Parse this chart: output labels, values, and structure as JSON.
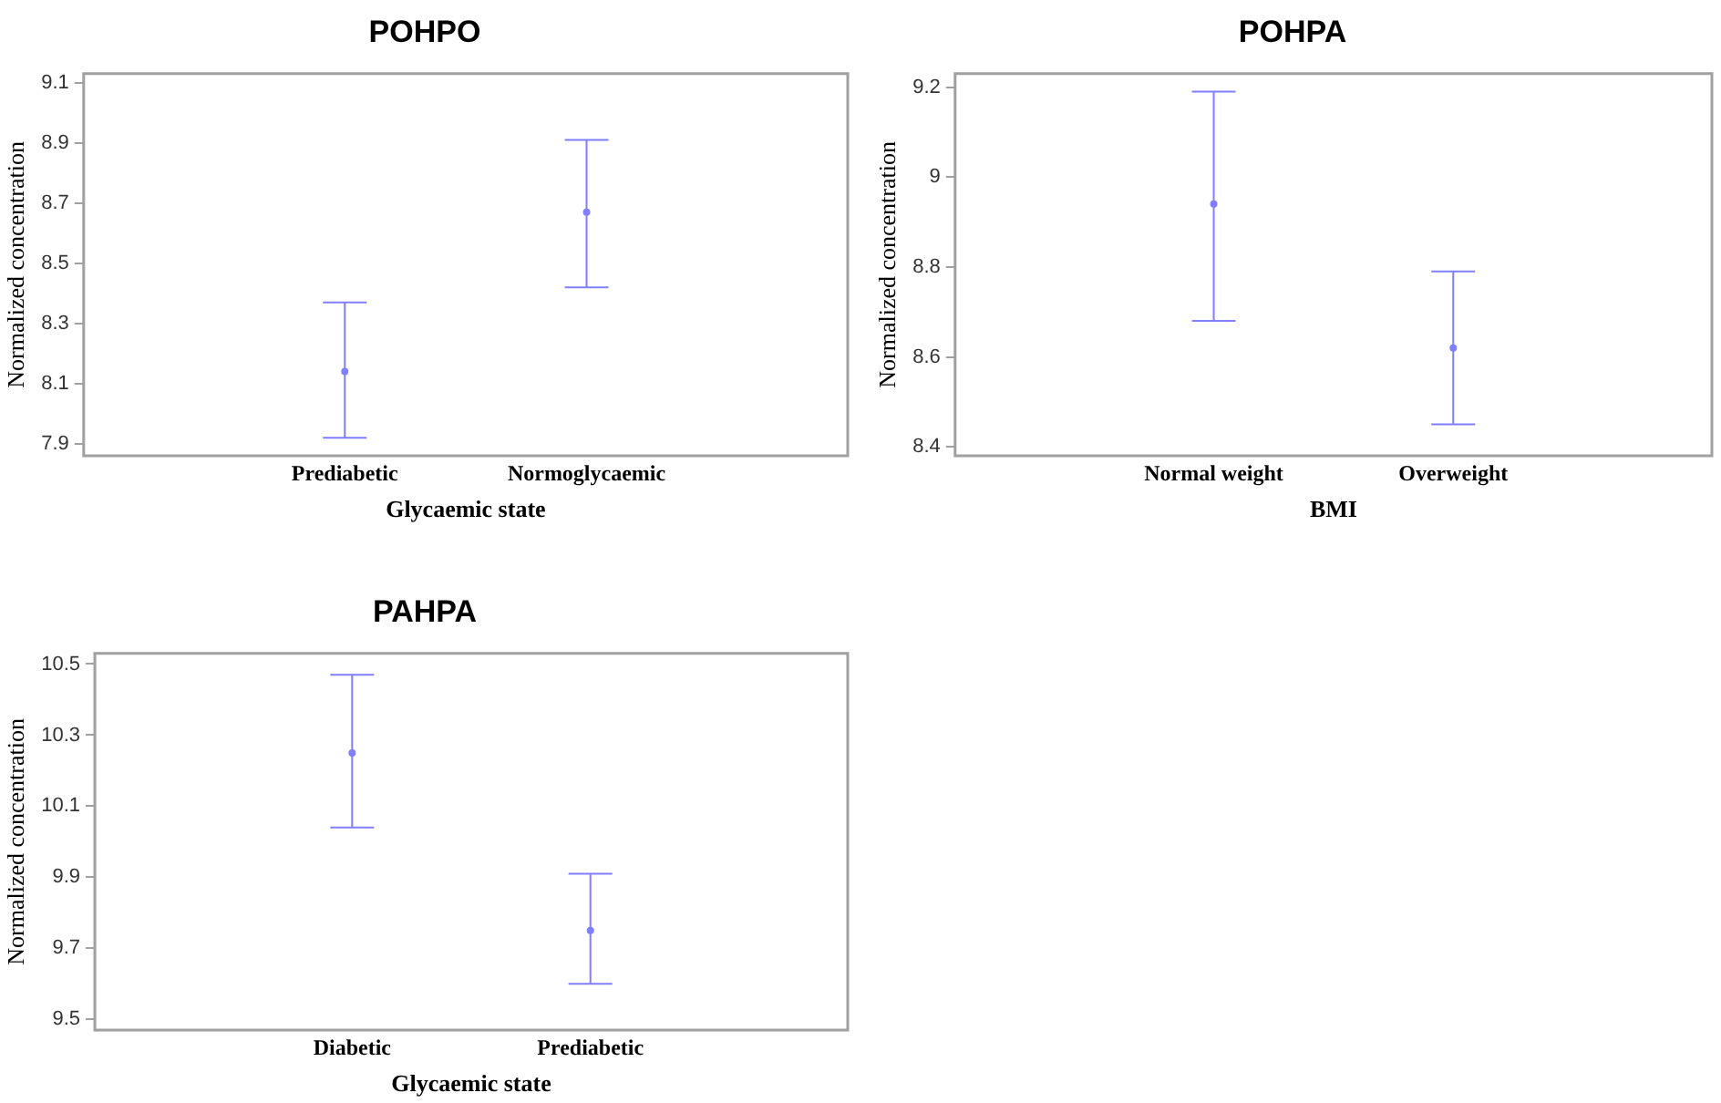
{
  "chart_data": [
    {
      "type": "scatter",
      "title": "POHPO",
      "xlabel": "Glycaemic state",
      "ylabel": "Normalized concentration",
      "categories": [
        "Prediabetic",
        "Normoglycaemic"
      ],
      "series": [
        {
          "color": "#7f7fff",
          "values": [
            8.14,
            8.67
          ],
          "errors": [
            [
              7.92,
              8.37
            ],
            [
              8.42,
              8.91
            ]
          ]
        }
      ],
      "ylim": [
        7.86,
        9.13
      ],
      "yticks": [
        7.9,
        8.1,
        8.3,
        8.5,
        8.7,
        8.9,
        9.1
      ],
      "marker": "circle"
    },
    {
      "type": "scatter",
      "title": "POHPA",
      "xlabel": "BMI",
      "ylabel": "Normalized concentration",
      "categories": [
        "Normal weight",
        "Overweight"
      ],
      "series": [
        {
          "color": "#7f7fff",
          "values": [
            8.94,
            8.62
          ],
          "errors": [
            [
              8.68,
              9.19
            ],
            [
              8.45,
              8.79
            ]
          ]
        }
      ],
      "ylim": [
        8.38,
        9.23
      ],
      "yticks": [
        8.4,
        8.6,
        8.8,
        9,
        9.2
      ],
      "marker": "circle"
    },
    {
      "type": "scatter",
      "title": "PAHPA",
      "xlabel": "Glycaemic state",
      "ylabel": "Normalized concentration",
      "categories": [
        "Diabetic",
        "Prediabetic"
      ],
      "series": [
        {
          "color": "#7f7fff",
          "values": [
            10.25,
            9.75
          ],
          "errors": [
            [
              10.04,
              10.47
            ],
            [
              9.6,
              9.91
            ]
          ]
        }
      ],
      "ylim": [
        9.47,
        10.53
      ],
      "yticks": [
        9.5,
        9.7,
        9.9,
        10.1,
        10.3,
        10.5
      ],
      "marker": "circle"
    }
  ]
}
